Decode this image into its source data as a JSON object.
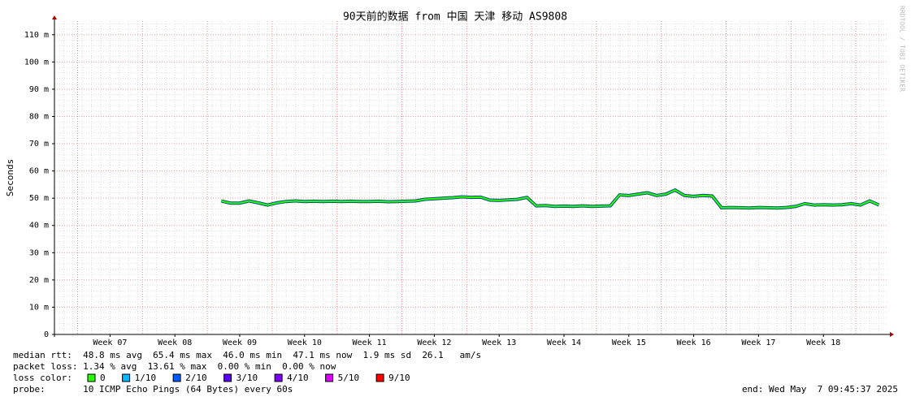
{
  "chart_data": {
    "type": "line",
    "title": "90天前的数据 from 中国 天津 移动 AS9808",
    "y_label": "Seconds",
    "watermark": "RRDTOOL / TOBI OETIKER",
    "xlim": [
      0,
      90
    ],
    "xticks": [
      {
        "value": 6,
        "label": "Week 07"
      },
      {
        "value": 13,
        "label": "Week 08"
      },
      {
        "value": 20,
        "label": "Week 09"
      },
      {
        "value": 27,
        "label": "Week 10"
      },
      {
        "value": 34,
        "label": "Week 11"
      },
      {
        "value": 41,
        "label": "Week 12"
      },
      {
        "value": 48,
        "label": "Week 13"
      },
      {
        "value": 55,
        "label": "Week 14"
      },
      {
        "value": 62,
        "label": "Week 15"
      },
      {
        "value": 69,
        "label": "Week 16"
      },
      {
        "value": 76,
        "label": "Week 17"
      },
      {
        "value": 83,
        "label": "Week 18"
      }
    ],
    "ylim": [
      0,
      115
    ],
    "yticks": [
      0,
      {
        "value": 10,
        "label": "10 m"
      },
      {
        "value": 20,
        "label": "20 m"
      },
      {
        "value": 30,
        "label": "30 m"
      },
      {
        "value": 40,
        "label": "40 m"
      },
      {
        "value": 50,
        "label": "50 m"
      },
      {
        "value": 60,
        "label": "60 m"
      },
      {
        "value": 70,
        "label": "70 m"
      },
      {
        "value": 80,
        "label": "80 m"
      },
      {
        "value": 90,
        "label": "90 m"
      },
      {
        "value": 100,
        "label": "100 m"
      },
      {
        "value": 110,
        "label": "110 m"
      }
    ],
    "grid": true,
    "x": [
      18,
      19,
      20,
      21,
      22,
      23,
      24,
      25,
      26,
      27,
      28,
      29,
      30,
      31,
      32,
      33,
      34,
      35,
      36,
      37,
      38,
      39,
      40,
      41,
      42,
      43,
      44,
      45,
      46,
      47,
      48,
      49,
      50,
      51,
      52,
      53,
      54,
      55,
      56,
      57,
      58,
      59,
      60,
      61,
      62,
      63,
      64,
      65,
      66,
      67,
      68,
      69,
      70,
      71,
      72,
      73,
      74,
      75,
      76,
      77,
      78,
      79,
      80,
      81,
      82,
      83,
      84,
      85,
      86,
      87,
      88,
      89
    ],
    "series": [
      {
        "color": "#26ff00",
        "values": [
          49,
          48.2,
          48.2,
          49,
          48.3,
          47.5,
          48.3,
          48.8,
          49,
          48.8,
          48.9,
          48.8,
          48.9,
          48.8,
          48.9,
          48.8,
          48.8,
          48.9,
          48.7,
          48.8,
          48.9,
          49,
          49.6,
          49.8,
          50,
          50.2,
          50.5,
          50.3,
          50.4,
          49.3,
          49.2,
          49.4,
          49.6,
          50.3,
          47.2,
          47.3,
          47,
          47.1,
          47,
          47.2,
          47,
          47.1,
          47.2,
          51.2,
          51,
          51.5,
          52,
          51,
          51.5,
          53,
          51,
          50.7,
          51,
          50.8,
          46.5,
          46.6,
          46.5,
          46.4,
          46.6,
          46.5,
          46.4,
          46.6,
          47,
          48,
          47.5,
          47.6,
          47.5,
          47.6,
          48,
          47.5,
          49,
          47.5
        ]
      }
    ],
    "stats": [
      "median rtt:  48.8 ms avg  65.4 ms max  46.0 ms min  47.1 ms now  1.9 ms sd  26.1   am/s",
      "packet loss: 1.34 % avg  13.61 % max  0.00 % min  0.00 % now"
    ],
    "loss_color_label": "loss color:",
    "loss_colors": [
      {
        "label": "0",
        "color": "#26ff00"
      },
      {
        "label": "1/10",
        "color": "#00b8ff"
      },
      {
        "label": "2/10",
        "color": "#0059ff"
      },
      {
        "label": "3/10",
        "color": "#5e00ff"
      },
      {
        "label": "4/10",
        "color": "#7e00ff"
      },
      {
        "label": "5/10",
        "color": "#dd00ff"
      },
      {
        "label": "9/10",
        "color": "#ff0000"
      }
    ],
    "probe": "probe:       10 ICMP Echo Pings (64 Bytes) every 60s",
    "end": "end: Wed May  7 09:45:37 2025"
  }
}
